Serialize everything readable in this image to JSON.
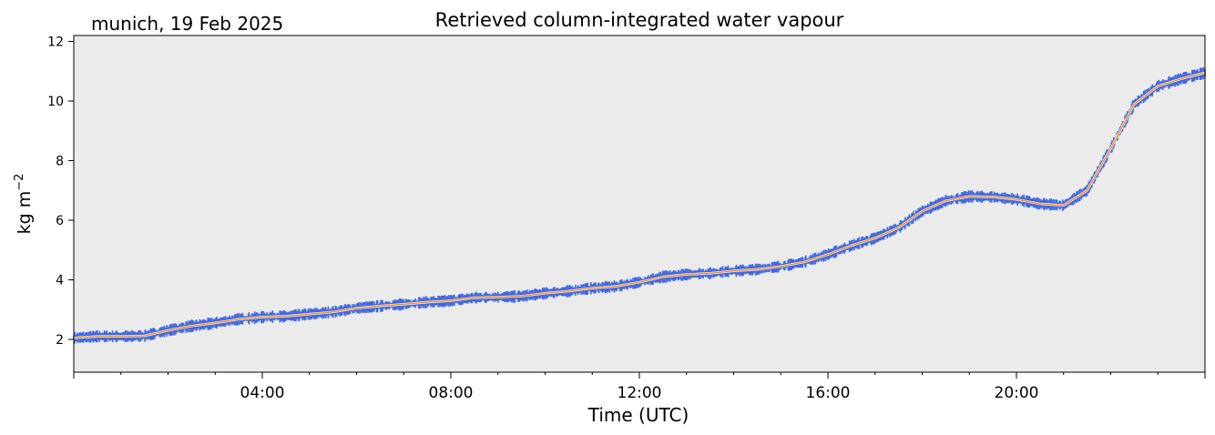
{
  "chart_data": {
    "type": "line",
    "title": "Retrieved column-integrated water vapour",
    "subtitle": "munich, 19 Feb 2025",
    "xlabel": "Time (UTC)",
    "ylabel_base": "kg m",
    "ylabel_exp": "−2",
    "xlim": [
      0,
      24
    ],
    "ylim": [
      0.9,
      12.2
    ],
    "xticks": [
      {
        "value": 4,
        "label": "04:00"
      },
      {
        "value": 8,
        "label": "08:00"
      },
      {
        "value": 12,
        "label": "12:00"
      },
      {
        "value": 16,
        "label": "16:00"
      },
      {
        "value": 20,
        "label": "20:00"
      }
    ],
    "yticks": [
      {
        "value": 2,
        "label": "2"
      },
      {
        "value": 4,
        "label": "4"
      },
      {
        "value": 6,
        "label": "6"
      },
      {
        "value": 8,
        "label": "8"
      },
      {
        "value": 10,
        "label": "10"
      },
      {
        "value": 12,
        "label": "12"
      }
    ],
    "grid": false,
    "colors": {
      "background": "#ebebeb",
      "raw": "#4169e1",
      "smoothed": "#ff8c1a"
    },
    "series": [
      {
        "kind": "raw",
        "x": [
          0,
          0.5,
          1,
          1.5,
          2,
          2.5,
          3,
          3.5,
          4,
          4.5,
          5,
          5.5,
          6,
          6.5,
          7,
          7.5,
          8,
          8.5,
          9,
          9.5,
          10,
          10.5,
          11,
          11.5,
          12,
          12.5,
          13,
          13.5,
          14,
          14.5,
          15,
          15.5,
          16,
          16.5,
          17,
          17.5,
          18,
          18.5,
          19,
          19.5,
          20,
          20.5,
          21,
          21.5,
          22,
          22.5,
          23,
          23.5,
          24
        ],
        "y": [
          2.05,
          2.1,
          2.1,
          2.12,
          2.3,
          2.45,
          2.55,
          2.68,
          2.75,
          2.78,
          2.85,
          2.92,
          3.05,
          3.12,
          3.18,
          3.25,
          3.3,
          3.4,
          3.42,
          3.45,
          3.55,
          3.62,
          3.72,
          3.78,
          3.92,
          4.1,
          4.18,
          4.22,
          4.3,
          4.35,
          4.45,
          4.6,
          4.85,
          5.15,
          5.4,
          5.75,
          6.3,
          6.65,
          6.8,
          6.78,
          6.7,
          6.55,
          6.5,
          7.0,
          8.4,
          9.9,
          10.5,
          10.75,
          10.95
        ],
        "spread": 0.14
      },
      {
        "kind": "smoothed",
        "x": [
          0,
          0.5,
          1,
          1.5,
          2,
          2.5,
          3,
          3.5,
          4,
          4.5,
          5,
          5.5,
          6,
          6.5,
          7,
          7.5,
          8,
          8.5,
          9,
          9.5,
          10,
          10.5,
          11,
          11.5,
          12,
          12.5,
          13,
          13.5,
          14,
          14.5,
          15,
          15.5,
          16,
          16.5,
          17,
          17.5,
          18,
          18.5,
          19,
          19.5,
          20,
          20.5,
          21,
          21.5,
          22,
          22.5,
          23,
          23.5,
          24
        ],
        "y": [
          2.05,
          2.1,
          2.1,
          2.12,
          2.3,
          2.45,
          2.55,
          2.68,
          2.75,
          2.78,
          2.85,
          2.92,
          3.05,
          3.12,
          3.18,
          3.25,
          3.3,
          3.4,
          3.42,
          3.45,
          3.55,
          3.62,
          3.72,
          3.78,
          3.92,
          4.1,
          4.18,
          4.22,
          4.3,
          4.35,
          4.45,
          4.6,
          4.85,
          5.15,
          5.4,
          5.75,
          6.3,
          6.65,
          6.8,
          6.78,
          6.7,
          6.55,
          6.5,
          7.0,
          8.4,
          9.9,
          10.5,
          10.75,
          10.95
        ]
      }
    ]
  }
}
